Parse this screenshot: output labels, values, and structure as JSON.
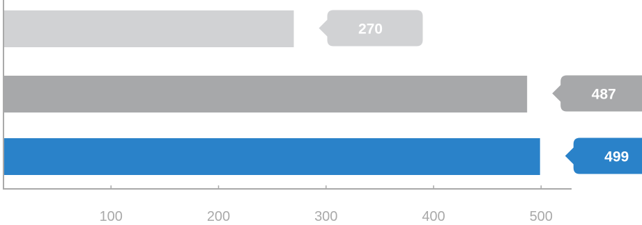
{
  "chart_data": {
    "type": "bar",
    "orientation": "horizontal",
    "categories": [
      "",
      "",
      ""
    ],
    "values": [
      270,
      487,
      499
    ],
    "data_labels": [
      "270",
      "487",
      "499"
    ],
    "bar_colors": [
      "#d1d2d4",
      "#a7a8aa",
      "#2a82c9"
    ],
    "xlim": [
      0,
      530
    ],
    "ticks": [
      100,
      200,
      300,
      400,
      500
    ],
    "tick_labels": [
      "100",
      "200",
      "300",
      "400",
      "500"
    ],
    "axis_color": "#a9a9a9",
    "grid": false,
    "legend": "none",
    "title": "",
    "xlabel": "",
    "ylabel": ""
  }
}
